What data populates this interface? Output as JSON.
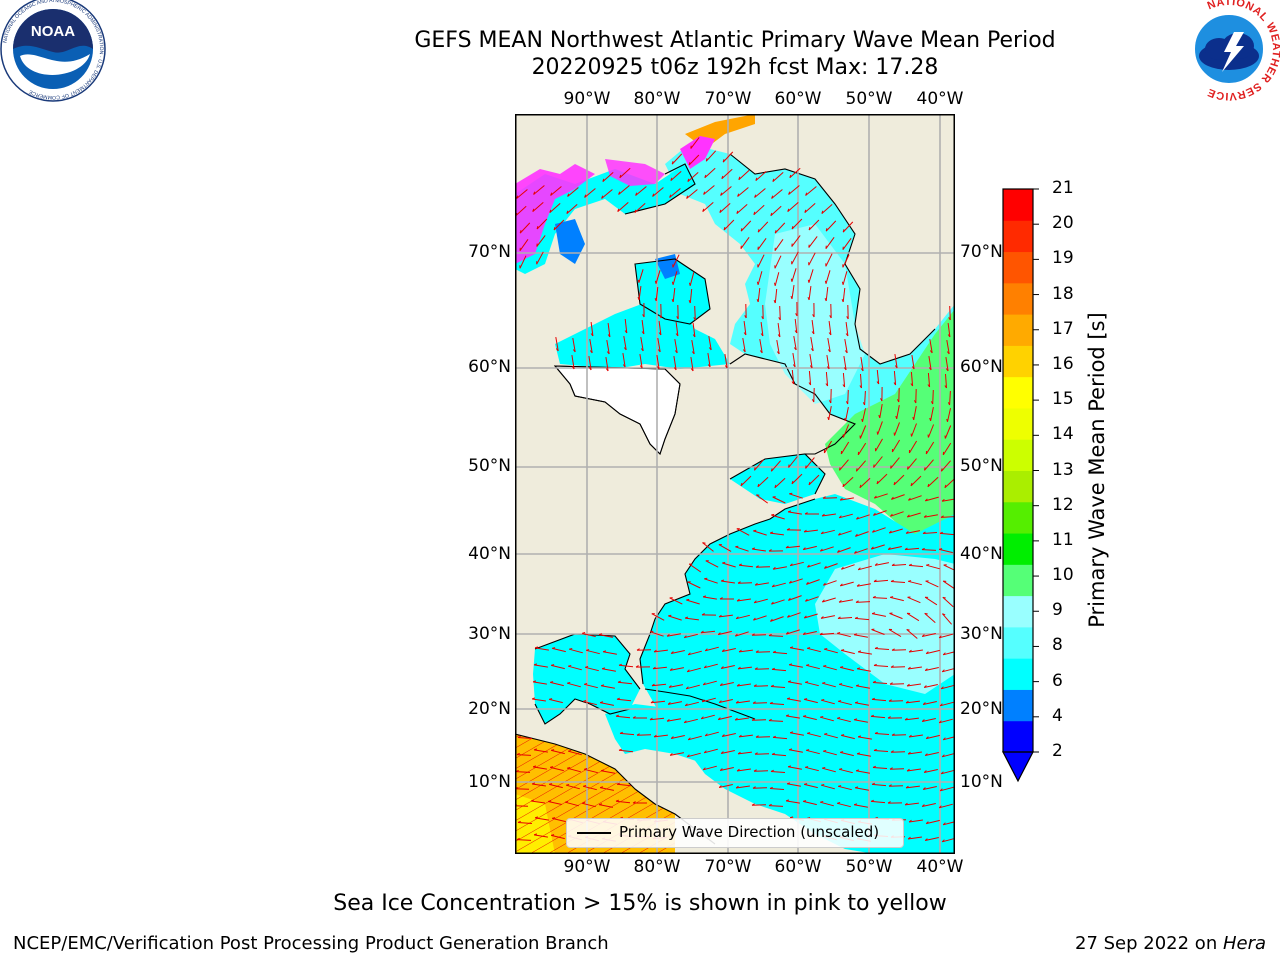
{
  "title": {
    "line1": "GEFS MEAN Northwest Atlantic Primary Wave Mean Period",
    "line2": "20220925 t06z 192h fcst   Max: 17.28"
  },
  "map": {
    "lon_ticks": [
      "90°W",
      "80°W",
      "70°W",
      "60°W",
      "50°W",
      "40°W"
    ],
    "lat_ticks": [
      "70°N",
      "60°N",
      "50°N",
      "40°N",
      "30°N",
      "20°N",
      "10°N"
    ],
    "legend_label": "Primary Wave Direction (unscaled)",
    "colors": {
      "land": "#efecdc",
      "ocean_low": "#00ffff",
      "ocean_mid": "#99ffff",
      "green": "#55ff77",
      "arrows": "#e60000",
      "sea_ice": "#ff33ff",
      "orange": "#ffa500",
      "grid": "#b0b0b0"
    }
  },
  "colorbar": {
    "title": "Primary Wave Mean Period [s]",
    "labels": [
      "21",
      "20",
      "19",
      "18",
      "17",
      "16",
      "15",
      "14",
      "13",
      "12",
      "11",
      "10",
      "9",
      "8",
      "6",
      "4",
      "2"
    ],
    "colors": [
      "#0000ff",
      "#0080ff",
      "#00ffff",
      "#55ffff",
      "#99ffff",
      "#55ff77",
      "#00ee00",
      "#55ee00",
      "#aaee00",
      "#ccff00",
      "#eeff00",
      "#ffff00",
      "#ffd200",
      "#ffaa00",
      "#ff8000",
      "#ff5500",
      "#ff2a00",
      "#ff0000"
    ]
  },
  "logos": {
    "noaa_text": "NOAA",
    "noaa_ring": "NATIONAL OCEANIC AND ATMOSPHERIC ADMINISTRATION · U.S. DEPARTMENT OF COMMERCE",
    "nws_ring": "NATIONAL WEATHER SERVICE"
  },
  "footer": {
    "sea_ice_note": "Sea Ice Concentration > 15% is shown in pink to yellow",
    "credit_left": "NCEP/EMC/Verification Post Processing Product Generation Branch",
    "credit_date": "27 Sep 2022 on ",
    "credit_machine": "Hera"
  }
}
